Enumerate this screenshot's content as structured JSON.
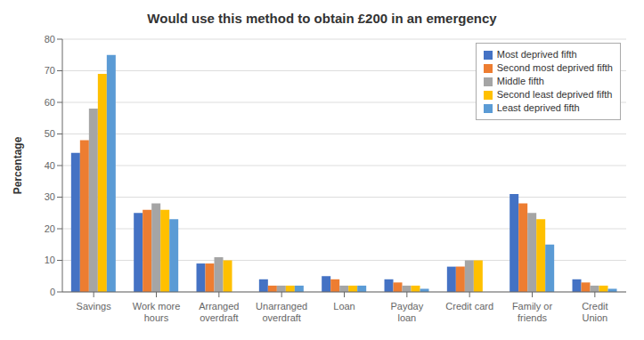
{
  "chart_data": {
    "type": "bar",
    "title": "Would use this method to obtain £200 in an emergency",
    "ylabel": "Percentage",
    "categories": [
      "Savings",
      "Work more\nhours",
      "Arranged\noverdraft",
      "Unarranged\noverdraft",
      "Loan",
      "Payday\nloan",
      "Credit card",
      "Family or\nfriends",
      "Credit\nUnion"
    ],
    "series": [
      {
        "name": "Most deprived fifth",
        "color": "#4472C4",
        "values": [
          44,
          25,
          9,
          4,
          5,
          4,
          8,
          31,
          4
        ]
      },
      {
        "name": "Second most deprived fifth",
        "color": "#ED7D31",
        "values": [
          48,
          26,
          9,
          2,
          4,
          3,
          8,
          28,
          3
        ]
      },
      {
        "name": "Middle fifth",
        "color": "#A5A5A5",
        "values": [
          58,
          28,
          11,
          2,
          2,
          2,
          10,
          25,
          2
        ]
      },
      {
        "name": "Second least deprived fifth",
        "color": "#FFC000",
        "values": [
          69,
          26,
          10,
          2,
          2,
          2,
          10,
          23,
          2
        ]
      },
      {
        "name": "Least deprived fifth",
        "color": "#5B9BD5",
        "values": [
          75,
          23,
          0,
          2,
          2,
          1,
          0,
          15,
          1
        ]
      }
    ],
    "ylim": [
      0,
      80
    ],
    "yticks": [
      0,
      10,
      20,
      30,
      40,
      50,
      60,
      70,
      80
    ],
    "grid": true,
    "legend": "upper right"
  }
}
